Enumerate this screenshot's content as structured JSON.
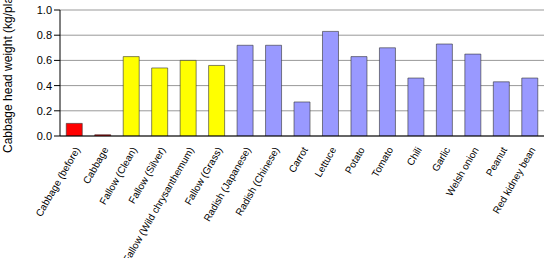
{
  "chart_data": {
    "type": "bar",
    "y_label": "Cabbage head weight (kg/plant)",
    "categories": [
      "Cabbage (before)",
      "Cabbage",
      "Fallow (Clean)",
      "Fallow (Silver)",
      "Fallow (Wild chrysanthemum)",
      "Fallow (Grass)",
      "Radish (Japanese)",
      "Radish (Chinese)",
      "Carrot",
      "Lettuce",
      "Potato",
      "Tomato",
      "Chili",
      "Garlic",
      "Welsh onion",
      "Peanut",
      "Red kidney bean"
    ],
    "values": [
      0.1,
      0.01,
      0.63,
      0.54,
      0.6,
      0.56,
      0.72,
      0.72,
      0.27,
      0.83,
      0.63,
      0.7,
      0.46,
      0.73,
      0.65,
      0.43,
      0.46
    ],
    "colors": [
      "#ff0000",
      "#ff0000",
      "#ffff00",
      "#ffff00",
      "#ffff00",
      "#ffff00",
      "#9999ff",
      "#9999ff",
      "#9999ff",
      "#9999ff",
      "#9999ff",
      "#9999ff",
      "#9999ff",
      "#9999ff",
      "#9999ff",
      "#9999ff",
      "#9999ff"
    ],
    "ylim": [
      0,
      1
    ],
    "yticks": [
      {
        "value": 0,
        "label": "0.0"
      },
      {
        "value": 0.2,
        "label": "0.2"
      },
      {
        "value": 0.4,
        "label": "0.4"
      },
      {
        "value": 0.6,
        "label": "0.6"
      },
      {
        "value": 0.8,
        "label": "0.8"
      },
      {
        "value": 1,
        "label": "1.0"
      }
    ],
    "grid": true
  }
}
